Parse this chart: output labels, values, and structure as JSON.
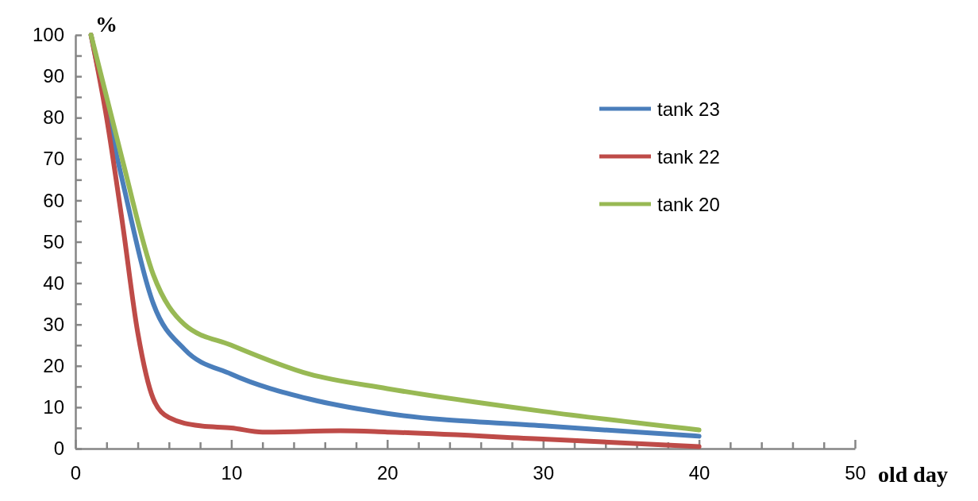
{
  "chart_data": {
    "type": "line",
    "ylabel": "%",
    "xlabel": "old day",
    "xlim": [
      0,
      50
    ],
    "ylim": [
      0,
      100
    ],
    "xticks": [
      0,
      {
        "value": 2,
        "label": null
      },
      {
        "value": 4,
        "label": null
      },
      {
        "value": 6,
        "label": null
      },
      {
        "value": 8,
        "label": null
      },
      10,
      {
        "value": 12,
        "label": null
      },
      {
        "value": 14,
        "label": null
      },
      {
        "value": 16,
        "label": null
      },
      {
        "value": 18,
        "label": null
      },
      20,
      {
        "value": 22,
        "label": null
      },
      {
        "value": 24,
        "label": null
      },
      {
        "value": 26,
        "label": null
      },
      {
        "value": 28,
        "label": null
      },
      30,
      {
        "value": 32,
        "label": null
      },
      {
        "value": 34,
        "label": null
      },
      {
        "value": 36,
        "label": null
      },
      {
        "value": 38,
        "label": null
      },
      40,
      {
        "value": 42,
        "label": null
      },
      {
        "value": 44,
        "label": null
      },
      {
        "value": 46,
        "label": null
      },
      {
        "value": 48,
        "label": null
      },
      50
    ],
    "yticks": [
      0,
      {
        "value": 5,
        "label": null
      },
      10,
      {
        "value": 15,
        "label": null
      },
      20,
      {
        "value": 25,
        "label": null
      },
      30,
      {
        "value": 35,
        "label": null
      },
      40,
      {
        "value": 45,
        "label": null
      },
      50,
      {
        "value": 55,
        "label": null
      },
      60,
      {
        "value": 65,
        "label": null
      },
      70,
      {
        "value": 75,
        "label": null
      },
      80,
      {
        "value": 85,
        "label": null
      },
      90,
      {
        "value": 95,
        "label": null
      },
      100
    ],
    "grid": false,
    "legend": "top right",
    "marker": "none",
    "line_style": "solid",
    "series": [
      {
        "name": "tank 23",
        "color": "#4a7ebb",
        "x": [
          1,
          3,
          5,
          7,
          10,
          15,
          20,
          30,
          40
        ],
        "values": [
          100,
          65,
          35,
          24,
          18,
          12,
          8.5,
          5.5,
          3
        ]
      },
      {
        "name": "tank 22",
        "color": "#be4b48",
        "x": [
          1,
          2,
          3,
          4,
          5,
          6,
          8,
          10,
          12,
          17,
          20,
          30,
          40
        ],
        "values": [
          100,
          80,
          55,
          28,
          12,
          7.5,
          5.5,
          5,
          4,
          4.3,
          4,
          2.3,
          0.5
        ]
      },
      {
        "name": "tank 20",
        "color": "#98b954",
        "x": [
          1,
          3,
          5,
          7,
          10,
          15,
          20,
          30,
          40
        ],
        "values": [
          100,
          70,
          42,
          30,
          25,
          18,
          14.5,
          9,
          4.5
        ]
      }
    ]
  }
}
